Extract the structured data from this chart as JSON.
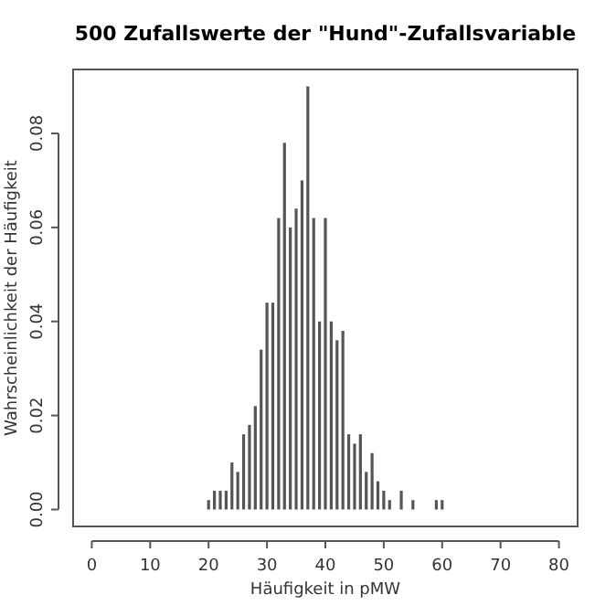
{
  "chart_data": {
    "type": "bar",
    "title": "500 Zufallswerte der \"Hund\"-Zufallsvariable",
    "xlabel": "Häufigkeit in pMW",
    "ylabel": "Wahrscheinlichkeit der Häufigkeit",
    "x": [
      20,
      21,
      22,
      23,
      24,
      25,
      26,
      27,
      28,
      29,
      30,
      31,
      32,
      33,
      34,
      35,
      36,
      37,
      38,
      39,
      40,
      41,
      42,
      43,
      44,
      45,
      46,
      47,
      48,
      49,
      50,
      51,
      53,
      55,
      59,
      60
    ],
    "values": [
      0.002,
      0.004,
      0.004,
      0.004,
      0.01,
      0.008,
      0.016,
      0.018,
      0.022,
      0.034,
      0.044,
      0.044,
      0.062,
      0.078,
      0.06,
      0.064,
      0.07,
      0.09,
      0.062,
      0.04,
      0.062,
      0.04,
      0.036,
      0.038,
      0.016,
      0.014,
      0.016,
      0.008,
      0.012,
      0.006,
      0.004,
      0.002,
      0.004,
      0.002,
      0.002,
      0.002
    ],
    "color": "#555555",
    "xlim": [
      -3.2,
      83.2
    ],
    "ylim": [
      -0.0036,
      0.0936
    ],
    "xticks": [
      0,
      10,
      20,
      30,
      40,
      50,
      60,
      70,
      80
    ],
    "yticks": [
      {
        "value": 0,
        "label": "0.00"
      },
      {
        "value": 0.02,
        "label": "0.02"
      },
      {
        "value": 0.04,
        "label": "0.04"
      },
      {
        "value": 0.06,
        "label": "0.06"
      },
      {
        "value": 0.08,
        "label": "0.08"
      }
    ],
    "grid": false
  }
}
